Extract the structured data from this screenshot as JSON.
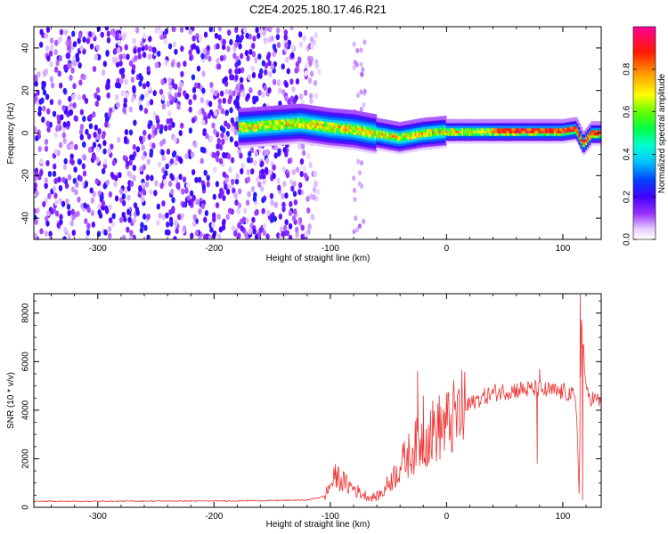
{
  "figure": {
    "title": "C2E4.2025.180.17.46.R21"
  },
  "chart_data": [
    {
      "type": "heatmap",
      "xlabel": "Height of straight line (km)",
      "ylabel": "Frequency (Hz)",
      "xlim": [
        -355,
        133
      ],
      "ylim": [
        -50,
        50
      ],
      "x_ticks": [
        -300,
        -200,
        -100,
        0,
        100
      ],
      "y_ticks": [
        -40,
        -20,
        0,
        20,
        40
      ],
      "grid": false,
      "colorbar": {
        "label": "Normalized spectral amplitude",
        "range": [
          0,
          1
        ],
        "ticks": [
          0.0,
          0.2,
          0.4,
          0.6,
          0.8
        ],
        "colormap": [
          "#ffffff",
          "#d9b3ff",
          "#8a2be2",
          "#5a00ff",
          "#0000ff",
          "#00bfff",
          "#00ffff",
          "#00ff80",
          "#00ff00",
          "#ffff00",
          "#ff8000",
          "#ff0000",
          "#ff00aa"
        ]
      },
      "ridge": {
        "description_values": "centre frequency of the strong signal band vs height",
        "x": [
          -175,
          -150,
          -125,
          -100,
          -80,
          -60,
          -40,
          -20,
          0,
          20,
          40,
          60,
          80,
          100,
          112,
          118,
          125,
          133
        ],
        "frequency": [
          3,
          4,
          5,
          3,
          2,
          0,
          -2,
          0,
          1,
          1,
          1,
          1,
          1,
          1,
          2,
          -5,
          0,
          0
        ]
      }
    },
    {
      "type": "line",
      "xlabel": "Height of straight line (km)",
      "ylabel": "SNR (10 * v/v)",
      "xlim": [
        -355,
        133
      ],
      "ylim": [
        0,
        8800
      ],
      "x_ticks": [
        -300,
        -200,
        -100,
        0,
        100
      ],
      "y_ticks": [
        0,
        2000,
        4000,
        6000,
        8000
      ],
      "grid": false,
      "series": [
        {
          "color": "#ee3333",
          "x": [
            -355,
            -300,
            -250,
            -200,
            -150,
            -120,
            -105,
            -100,
            -95,
            -90,
            -85,
            -80,
            -75,
            -70,
            -65,
            -60,
            -55,
            -50,
            -45,
            -40,
            -35,
            -30,
            -25,
            -20,
            -15,
            -10,
            -5,
            0,
            5,
            10,
            15,
            20,
            25,
            30,
            35,
            40,
            45,
            50,
            55,
            60,
            65,
            70,
            75,
            80,
            85,
            90,
            95,
            100,
            105,
            108,
            110,
            112,
            114,
            116,
            118,
            120,
            122,
            125,
            130,
            133
          ],
          "y": [
            250,
            250,
            260,
            260,
            280,
            300,
            450,
            900,
            1300,
            1100,
            900,
            800,
            600,
            500,
            400,
            450,
            600,
            1000,
            1300,
            1700,
            2000,
            2300,
            2600,
            2800,
            3000,
            3200,
            3300,
            3400,
            3600,
            3800,
            4000,
            4200,
            4400,
            4500,
            4600,
            4700,
            4750,
            4800,
            4800,
            4850,
            4850,
            4850,
            4850,
            4850,
            4800,
            4800,
            4750,
            4750,
            4700,
            4600,
            4500,
            3800,
            600,
            7500,
            6500,
            4700,
            4600,
            4500,
            4400,
            4300
          ],
          "spikes": [
            {
              "x": -25,
              "y": 5600
            },
            {
              "x": -20,
              "y": 4600
            },
            {
              "x": 80,
              "y": 5700
            },
            {
              "x": 78,
              "y": 1800
            },
            {
              "x": 115,
              "y": 8800
            },
            {
              "x": 117,
              "y": 300
            }
          ]
        }
      ]
    }
  ]
}
